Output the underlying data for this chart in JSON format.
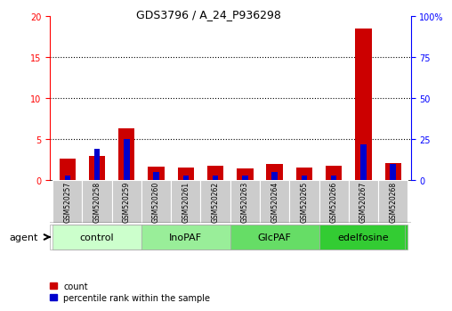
{
  "title": "GDS3796 / A_24_P936298",
  "samples": [
    "GSM520257",
    "GSM520258",
    "GSM520259",
    "GSM520260",
    "GSM520261",
    "GSM520262",
    "GSM520263",
    "GSM520264",
    "GSM520265",
    "GSM520266",
    "GSM520267",
    "GSM520268"
  ],
  "count_values": [
    2.6,
    3.0,
    6.3,
    1.7,
    1.55,
    1.75,
    1.45,
    2.0,
    1.55,
    1.75,
    18.5,
    2.1
  ],
  "percentile_values": [
    3,
    19,
    25,
    5,
    3,
    3,
    3,
    5,
    3,
    3,
    22,
    10
  ],
  "groups": [
    {
      "label": "control",
      "start": 0,
      "end": 3,
      "color": "#ccffcc"
    },
    {
      "label": "InoPAF",
      "start": 3,
      "end": 6,
      "color": "#99ee99"
    },
    {
      "label": "GlcPAF",
      "start": 6,
      "end": 9,
      "color": "#66dd66"
    },
    {
      "label": "edelfosine",
      "start": 9,
      "end": 12,
      "color": "#33cc33"
    }
  ],
  "left_ylim": [
    0,
    20
  ],
  "right_ylim": [
    0,
    100
  ],
  "left_yticks": [
    0,
    5,
    10,
    15,
    20
  ],
  "right_yticks": [
    0,
    25,
    50,
    75,
    100
  ],
  "right_yticklabels": [
    "0",
    "25",
    "50",
    "75",
    "100%"
  ],
  "count_bar_width": 0.55,
  "percentile_bar_width": 0.2,
  "count_color": "#cc0000",
  "percentile_color": "#0000cc",
  "group_colors": [
    "#ccffcc",
    "#99ee99",
    "#66dd66",
    "#33cc33"
  ],
  "agent_label": "agent",
  "legend_count": "count",
  "legend_percentile": "percentile rank within the sample",
  "sample_box_color": "#cccccc",
  "title_fontsize": 9,
  "tick_fontsize": 7,
  "label_fontsize": 7,
  "group_fontsize": 8
}
